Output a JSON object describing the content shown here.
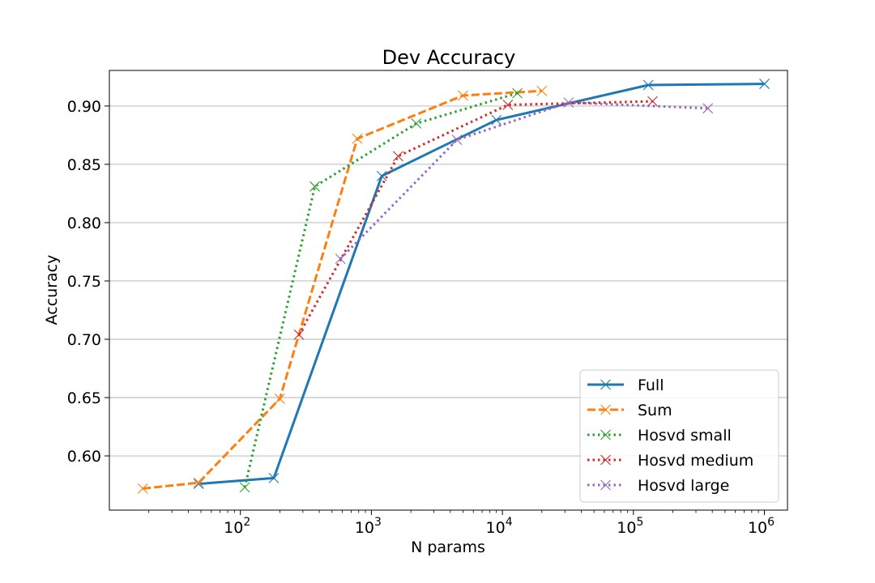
{
  "chart_data": {
    "type": "line",
    "title": "Dev Accuracy",
    "xlabel": "N params",
    "ylabel": "Accuracy",
    "xscale": "log",
    "xlim": [
      10,
      1500000
    ],
    "ylim": [
      0.5535,
      0.9305
    ],
    "yticks": [
      "0.60",
      "0.65",
      "0.70",
      "0.75",
      "0.80",
      "0.85",
      "0.90"
    ],
    "ytick_values": [
      0.6,
      0.65,
      0.7,
      0.75,
      0.8,
      0.85,
      0.9
    ],
    "xticks": [
      {
        "value": 100,
        "base": "10",
        "exp": "2"
      },
      {
        "value": 1000,
        "base": "10",
        "exp": "3"
      },
      {
        "value": 10000,
        "base": "10",
        "exp": "4"
      },
      {
        "value": 100000,
        "base": "10",
        "exp": "5"
      },
      {
        "value": 1000000,
        "base": "10",
        "exp": "6"
      }
    ],
    "grid": "y",
    "legend_position": "lower-right",
    "series": [
      {
        "name": "Full",
        "color": "#1f77b4",
        "style": "solid",
        "x": [
          48,
          180,
          1200,
          9000,
          130000,
          1000000
        ],
        "y": [
          0.576,
          0.581,
          0.84,
          0.888,
          0.918,
          0.919
        ]
      },
      {
        "name": "Sum",
        "color": "#ff7f0e",
        "style": "dashed",
        "x": [
          18,
          48,
          200,
          780,
          5000,
          20000
        ],
        "y": [
          0.572,
          0.577,
          0.649,
          0.872,
          0.909,
          0.913
        ]
      },
      {
        "name": "Hosvd small",
        "color": "#2ca02c",
        "style": "dotted",
        "x": [
          108,
          370,
          2200,
          13000
        ],
        "y": [
          0.573,
          0.831,
          0.885,
          0.911
        ]
      },
      {
        "name": "Hosvd medium",
        "color": "#d62728",
        "style": "dotted",
        "x": [
          280,
          1600,
          11000,
          140000
        ],
        "y": [
          0.704,
          0.857,
          0.901,
          0.904
        ]
      },
      {
        "name": "Hosvd large",
        "color": "#9467bd",
        "style": "dotted",
        "x": [
          580,
          4500,
          32000,
          370000
        ],
        "y": [
          0.769,
          0.871,
          0.903,
          0.898
        ]
      }
    ]
  }
}
